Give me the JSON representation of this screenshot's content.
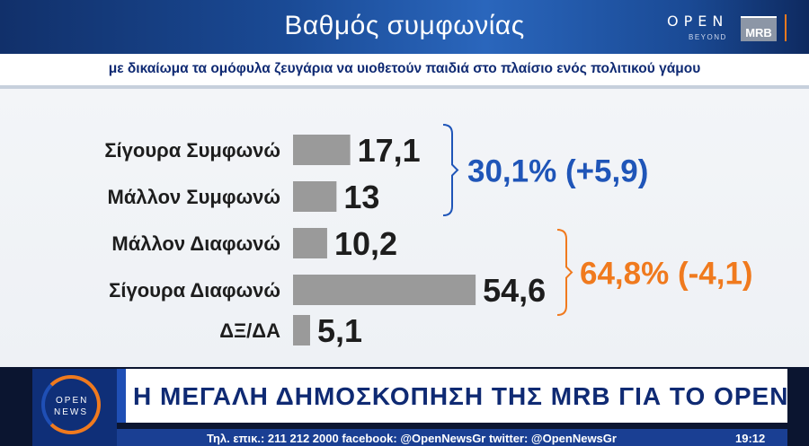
{
  "header": {
    "title": "Βαθμός συμφωνίας",
    "brand": "OPEN",
    "brand_sub": "BEYOND",
    "pollster_logo": "MRB"
  },
  "subtitle": "με δικαίωμα τα ομόφυλα ζευγάρια να υιοθετούν παιδιά στο πλαίσιο ενός πολιτικού γάμου",
  "chart_data": {
    "type": "bar",
    "orientation": "horizontal",
    "categories": [
      "Σίγουρα Συμφωνώ",
      "Μάλλον Συμφωνώ",
      "Μάλλον Διαφωνώ",
      "Σίγουρα Διαφωνώ",
      "ΔΞ/ΔΑ"
    ],
    "values": [
      17.1,
      13,
      10.2,
      54.6,
      5.1
    ],
    "value_labels": [
      "17,1",
      "13",
      "10,2",
      "54,6",
      "5,1"
    ],
    "xlim": [
      0,
      60
    ],
    "grid": false,
    "bar_color": "#9a9a9a",
    "groups": [
      {
        "label": "30,1% (+5,9)",
        "members": [
          0,
          1
        ],
        "color": "#1f55b8"
      },
      {
        "label": "64,8% (-4,1)",
        "members": [
          2,
          3
        ],
        "color": "#f07a1e"
      }
    ]
  },
  "ticker": {
    "logo_top": "OPEN",
    "logo_bottom": "NEWS",
    "headline": "Η ΜΕΓΑΛΗ ΔΗΜΟΣΚΟΠΗΣΗ ΤΗΣ MRB ΓΙΑ ΤΟ OPEN",
    "info": "Τηλ. επικ.: 211 212 2000 facebook: @OpenNewsGr twitter: @OpenNewsGr",
    "time": "19:12"
  }
}
